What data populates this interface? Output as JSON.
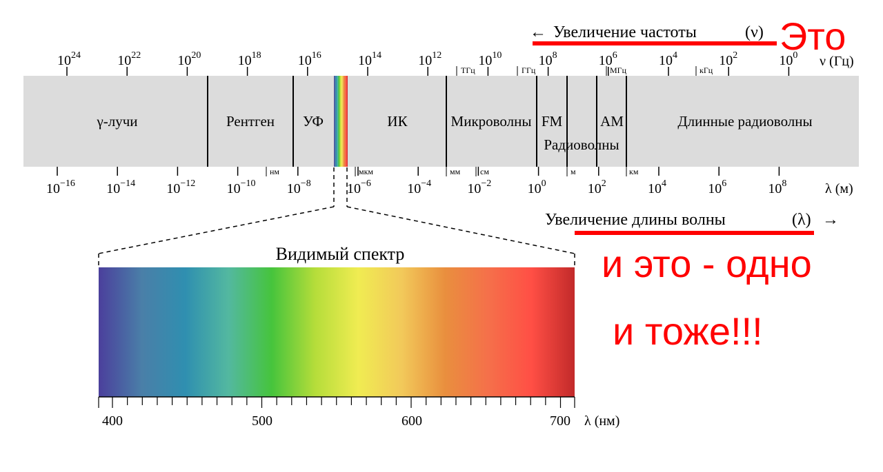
{
  "colors": {
    "band_fill": "#dcdcdc",
    "annotation": "#ff0000",
    "spectrum_stops": [
      "#4b3f9c",
      "#4a7fa8",
      "#2f8fb0",
      "#53b8a0",
      "#46c43c",
      "#b5dd3a",
      "#f0ec52",
      "#f2c95a",
      "#e98f3e",
      "#f5704a",
      "#ff4f45",
      "#c22a2a"
    ]
  },
  "frequency": {
    "direction_label": "Увеличение частоты",
    "symbol": "(ν)",
    "arrow": "←",
    "axis_unit": "ν (Гц)",
    "tick_exponents": [
      "24",
      "22",
      "20",
      "18",
      "16",
      "14",
      "12",
      "10",
      "8",
      "6",
      "4",
      "2",
      "0"
    ],
    "base": "10",
    "unit_marks": [
      "ТГц",
      "ГГц",
      "МГц",
      "кГц"
    ]
  },
  "bands": [
    {
      "label": "γ-лучи"
    },
    {
      "label": "Рентген"
    },
    {
      "label": "УФ"
    },
    {
      "label": "ИК"
    },
    {
      "label": "Микроволны"
    },
    {
      "label": "FM"
    },
    {
      "label": "AM"
    },
    {
      "label": "Длинные радиоволны"
    }
  ],
  "radio_label": "Радиоволны",
  "wavelength": {
    "direction_label": "Увеличение длины волны",
    "symbol": "(λ)",
    "arrow": "→",
    "axis_unit": "λ (м)",
    "tick_exponents": [
      "−16",
      "−14",
      "−12",
      "−10",
      "−8",
      "−6",
      "−4",
      "−2",
      "0",
      "2",
      "4",
      "6",
      "8"
    ],
    "base": "10",
    "unit_marks": [
      "нм",
      "мкм",
      "мм",
      "см",
      "м",
      "км"
    ]
  },
  "visible": {
    "title": "Видимый спектр",
    "tick_labels": [
      "400",
      "500",
      "600",
      "700"
    ],
    "axis_unit": "λ (нм)"
  },
  "annotations": {
    "line1": "Это",
    "line2": "и это - одно",
    "line3": "и тоже!!!"
  }
}
